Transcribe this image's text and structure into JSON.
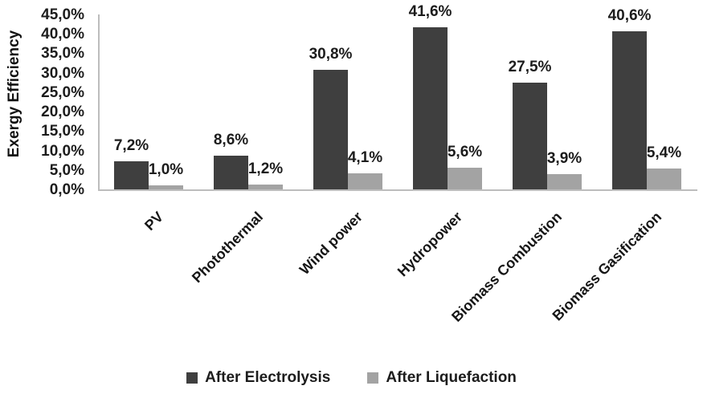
{
  "chart_data": {
    "type": "bar",
    "title": "",
    "ylabel": "Exergy Efficiency",
    "xlabel": "",
    "ylim": [
      0,
      45
    ],
    "grid": false,
    "legend_position": "bottom-center",
    "yticks": [
      "0,0%",
      "5,0%",
      "10,0%",
      "15,0%",
      "20,0%",
      "25,0%",
      "30,0%",
      "35,0%",
      "40,0%",
      "45,0%"
    ],
    "categories": [
      "PV",
      "Photothermal",
      "Wind power",
      "Hydropower",
      "Biomass Combustion",
      "Biomass Gasification"
    ],
    "series": [
      {
        "name": "After Electrolysis",
        "color": "#3f3f3f",
        "values": [
          7.2,
          8.6,
          30.8,
          41.6,
          27.5,
          40.6
        ],
        "labels": [
          "7,2%",
          "8,6%",
          "30,8%",
          "41,6%",
          "27,5%",
          "40,6%"
        ]
      },
      {
        "name": "After Liquefaction",
        "color": "#a3a3a3",
        "values": [
          1.0,
          1.2,
          4.1,
          5.6,
          3.9,
          5.4
        ],
        "labels": [
          "1,0%",
          "1,2%",
          "4,1%",
          "5,6%",
          "3,9%",
          "5,4%"
        ]
      }
    ],
    "colors": {
      "axis_line": "#bdbdbd",
      "text": "#1c1c1c",
      "background": "#ffffff"
    }
  }
}
